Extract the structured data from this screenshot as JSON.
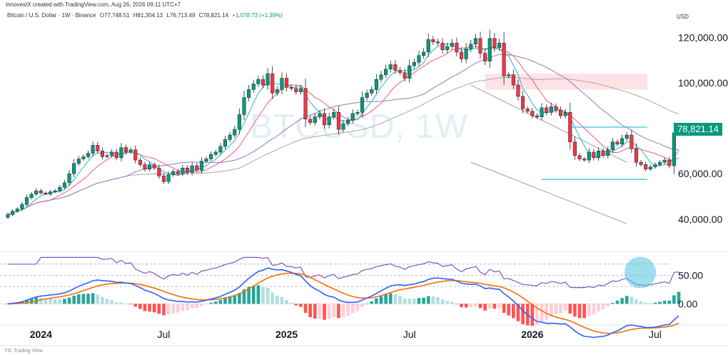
{
  "header": "InnovestX created with TradingView.com, Aug 26, 2026 09:11 UTC+7",
  "legend": {
    "symbol": "Bitcoin / U.S. Dollar · 1W · Binance",
    "open": "O77,748.51",
    "high": "H81,304.13",
    "low": "L76,713.49",
    "close": "C78,821.14",
    "change": "+1,078.73 (+1.39%)"
  },
  "currency": "USD",
  "watermark": "BTCUSD, 1W",
  "last_price": "78,821.14",
  "footer": "TIC Trading View",
  "colors": {
    "up": "#089981",
    "down": "#f23645",
    "ma_fast": "#22b3d6",
    "ma_mid": "#f05c7c",
    "ma_slow": "#8e7cc3",
    "ma_long": "#a8a8a8",
    "rsi": "#7e57c2",
    "macd": "#2962ff",
    "signal": "#ff6d00",
    "resistance_zone": "#fde2e6",
    "highlight": "#4fc3e0"
  },
  "chart_data": [
    {
      "type": "candlestick",
      "title": "Bitcoin / U.S. Dollar · 1W · Binance",
      "ylim": [
        28000,
        127000
      ],
      "yticks": [
        40000,
        60000,
        100000,
        120000
      ],
      "ytick_labels": [
        "40,000.00",
        "60,000.00",
        "100,000.00",
        "120,000.00"
      ],
      "x_labels": [
        "2024",
        "Jul",
        "2025",
        "Jul",
        "2026",
        "Jul"
      ],
      "x_label_weeks": [
        7,
        33,
        59,
        85,
        111,
        137
      ],
      "bold_labels": [
        "2024",
        "2025",
        "2026"
      ],
      "close": [
        42000,
        43500,
        44500,
        46500,
        49500,
        51000,
        52500,
        51500,
        51000,
        52000,
        52500,
        54000,
        56000,
        60000,
        64500,
        66500,
        67500,
        69000,
        72500,
        70000,
        67500,
        68000,
        69500,
        67000,
        71500,
        69500,
        70500,
        66000,
        64000,
        62000,
        64000,
        62500,
        59000,
        56500,
        59500,
        61000,
        60000,
        62500,
        60500,
        63500,
        61500,
        65500,
        66500,
        68500,
        69500,
        72000,
        75000,
        77000,
        79500,
        86000,
        93500,
        97000,
        99500,
        101500,
        99000,
        104000,
        95500,
        97000,
        102000,
        98000,
        97500,
        96000,
        97500,
        84000,
        82500,
        85000,
        86500,
        81500,
        85000,
        87000,
        79500,
        82000,
        83500,
        86500,
        87000,
        93500,
        95500,
        97000,
        101500,
        103500,
        106000,
        108000,
        105500,
        104500,
        102000,
        107500,
        109000,
        112000,
        113500,
        119000,
        118000,
        117500,
        114500,
        116000,
        117500,
        113500,
        110500,
        115000,
        117000,
        119500,
        113000,
        109500,
        119500,
        115500,
        117500,
        103000,
        103500,
        99000,
        94000,
        88500,
        87500,
        85500,
        85000,
        89000,
        87000,
        89500,
        88000,
        85500,
        87000,
        74000,
        68000,
        66500,
        66000,
        69500,
        67000,
        70000,
        68000,
        70500,
        74000,
        73000,
        75500,
        77000,
        71000,
        65000,
        64000,
        62000,
        63000,
        64000,
        65000,
        66000,
        63500,
        78000,
        79000
      ],
      "annotations": {
        "resistance_zone": [
          97000,
          104000
        ],
        "resistance_line": 80500,
        "support_line": 57500,
        "highlight_circle_week": 134
      },
      "moving_averages": [
        {
          "period": 5,
          "color": "#22b3d6"
        },
        {
          "period": 10,
          "color": "#f05c7c"
        },
        {
          "period": 26,
          "color": "#8e7cc3"
        },
        {
          "period": 50,
          "color": "#a8a8a8"
        }
      ]
    },
    {
      "type": "line",
      "title": "RSI",
      "ylim": [
        25,
        85
      ],
      "yticks": [
        50
      ],
      "ytick_labels": [
        "50.00"
      ],
      "levels": [
        70,
        50,
        30
      ]
    },
    {
      "type": "bar",
      "title": "MACD",
      "ylim": [
        -5500,
        4200
      ],
      "yticks": [
        0
      ],
      "ytick_labels": [
        "0.00"
      ]
    }
  ]
}
